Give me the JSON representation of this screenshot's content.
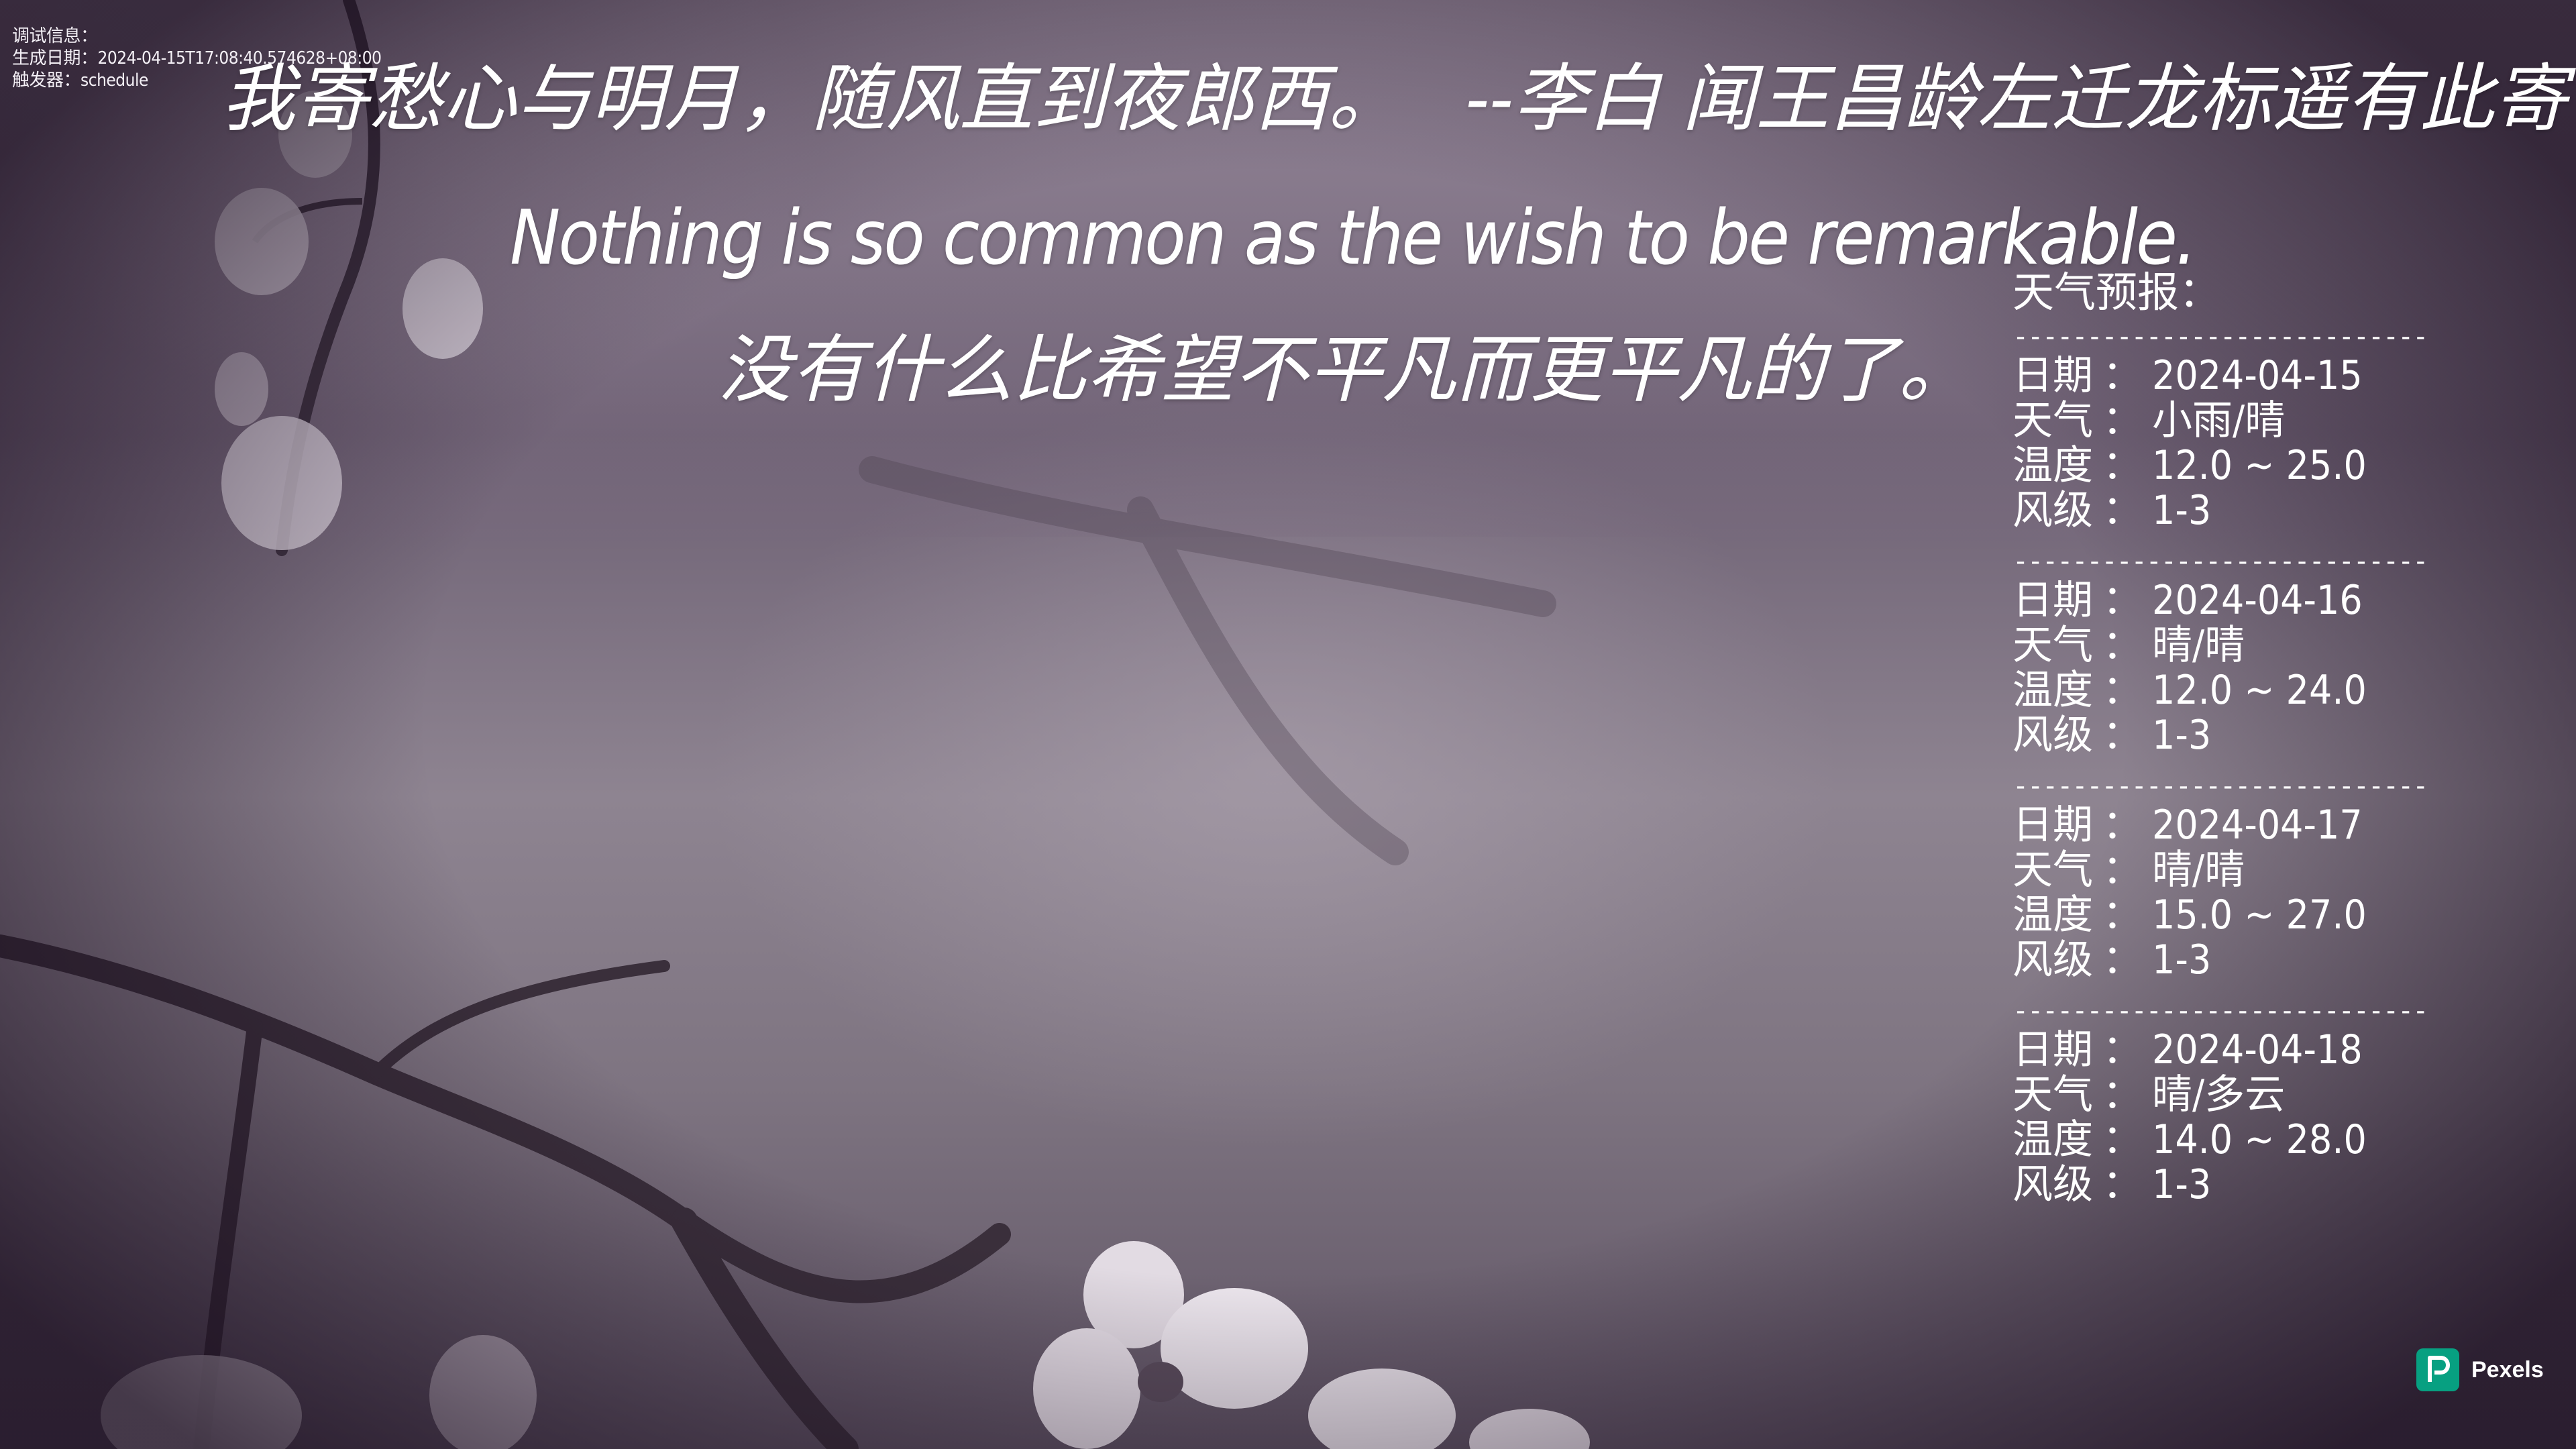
{
  "debug": {
    "title": "调试信息：",
    "generated_label": "生成日期：",
    "generated_value": "2024-04-15T17:08:40.574628+08:00",
    "trigger_label": "触发器：",
    "trigger_value": "schedule"
  },
  "quote": {
    "chinese_line": "我寄愁心与明月，随风直到夜郎西。   --李白 闻王昌龄左迁龙标遥有此寄",
    "english_line": "Nothing is so common as the wish to be remarkable.",
    "translation_line": "没有什么比希望不平凡而更平凡的了。"
  },
  "weather": {
    "title": "天气预报：",
    "divider": "----------------------------",
    "labels": {
      "date": "日期",
      "weather": "天气",
      "temperature": "温度",
      "wind": "风级",
      "separator": "："
    },
    "days": [
      {
        "date": "2024-04-15",
        "weather": "小雨/晴",
        "temperature": "12.0 ~ 25.0",
        "wind": "1-3"
      },
      {
        "date": "2024-04-16",
        "weather": "晴/晴",
        "temperature": "12.0 ~ 24.0",
        "wind": "1-3"
      },
      {
        "date": "2024-04-17",
        "weather": "晴/晴",
        "temperature": "15.0 ~ 27.0",
        "wind": "1-3"
      },
      {
        "date": "2024-04-18",
        "weather": "晴/多云",
        "temperature": "14.0 ~ 28.0",
        "wind": "1-3"
      }
    ]
  },
  "credit": {
    "brand": "Pexels",
    "brand_color": "#07a081",
    "icon": "pexels-logo-icon"
  }
}
